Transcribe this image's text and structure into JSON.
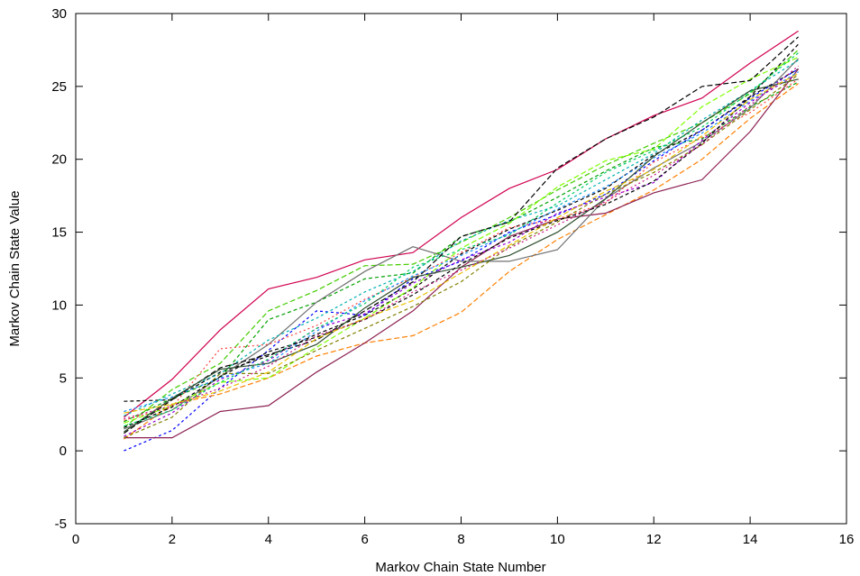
{
  "chart_data": {
    "type": "line",
    "title": "",
    "xlabel": "Markov Chain State Number",
    "ylabel": "Markov Chain State Value",
    "xlim": [
      0,
      16
    ],
    "ylim": [
      -5,
      30
    ],
    "xticks": [
      "0",
      "2",
      "4",
      "6",
      "8",
      "10",
      "12",
      "14",
      "16"
    ],
    "yticks": [
      "-5",
      "0",
      "5",
      "10",
      "15",
      "20",
      "25",
      "30"
    ],
    "grid": false,
    "legend": "none",
    "x": [
      1,
      2,
      3,
      4,
      5,
      6,
      7,
      8,
      9,
      10,
      11,
      12,
      13,
      14,
      15
    ],
    "series": [
      {
        "color": "#d0004f",
        "dash": "",
        "values": [
          2.3,
          4.9,
          8.3,
          11.1,
          11.9,
          13.1,
          13.6,
          16.0,
          18.0,
          19.3,
          21.4,
          23.0,
          24.2,
          26.6,
          28.8
        ]
      },
      {
        "color": "#000000",
        "dash": "4,3",
        "values": [
          3.4,
          3.5,
          5.4,
          6.5,
          8.0,
          9.3,
          11.1,
          13.5,
          15.2,
          16.5,
          18.0,
          20.3,
          22.0,
          24.3,
          26.2
        ]
      },
      {
        "color": "#00a000",
        "dash": "4,3",
        "values": [
          2.0,
          3.6,
          5.0,
          9.0,
          10.2,
          11.8,
          12.2,
          14.7,
          15.7,
          17.4,
          19.2,
          20.8,
          21.4,
          23.6,
          25.3
        ]
      },
      {
        "color": "#44cc00",
        "dash": "6,3",
        "values": [
          1.6,
          4.2,
          6.0,
          9.6,
          11.0,
          12.7,
          12.8,
          14.3,
          16.0,
          17.9,
          19.6,
          21.1,
          22.5,
          24.5,
          27.5
        ]
      },
      {
        "color": "#0000ff",
        "dash": "3,3",
        "values": [
          0.0,
          1.4,
          4.3,
          6.9,
          9.6,
          9.3,
          11.8,
          13.0,
          15.0,
          16.2,
          17.6,
          19.9,
          22.0,
          24.2,
          26.2
        ]
      },
      {
        "color": "#ff7f00",
        "dash": "6,3",
        "values": [
          0.8,
          3.2,
          3.9,
          5.0,
          6.5,
          7.4,
          7.9,
          9.5,
          12.3,
          14.5,
          16.2,
          17.9,
          20.0,
          22.8,
          25.2
        ]
      },
      {
        "color": "#8b2052",
        "dash": "",
        "values": [
          0.9,
          0.9,
          2.7,
          3.1,
          5.4,
          7.4,
          9.6,
          12.6,
          14.7,
          15.9,
          16.3,
          17.7,
          18.6,
          21.9,
          26.2
        ]
      },
      {
        "color": "#707070",
        "dash": "",
        "values": [
          1.5,
          2.8,
          5.1,
          7.3,
          10.2,
          12.3,
          14.0,
          13.0,
          13.0,
          13.8,
          17.3,
          19.4,
          21.2,
          23.5,
          26.9
        ]
      },
      {
        "color": "#00b0b0",
        "dash": "3,3",
        "values": [
          2.4,
          3.9,
          5.3,
          7.6,
          9.1,
          10.9,
          12.3,
          14.4,
          15.8,
          16.8,
          18.6,
          20.4,
          22.7,
          24.7,
          26.8
        ]
      },
      {
        "color": "#9400d3",
        "dash": "3,3",
        "values": [
          1.0,
          2.6,
          4.9,
          6.2,
          8.4,
          9.4,
          11.5,
          13.1,
          14.3,
          16.3,
          17.4,
          18.4,
          21.3,
          23.9,
          25.9
        ]
      },
      {
        "color": "#ff4040",
        "dash": "2,3",
        "values": [
          2.1,
          3.0,
          7.0,
          7.3,
          8.6,
          10.4,
          11.9,
          13.6,
          15.3,
          15.9,
          17.0,
          19.8,
          21.5,
          23.2,
          25.5
        ]
      },
      {
        "color": "#7fff00",
        "dash": "6,3",
        "values": [
          1.9,
          3.1,
          4.7,
          5.0,
          7.1,
          9.1,
          11.2,
          13.9,
          15.6,
          18.1,
          19.9,
          20.7,
          23.6,
          25.5,
          27.0
        ]
      },
      {
        "color": "#000000",
        "dash": "6,3",
        "values": [
          1.2,
          3.5,
          5.7,
          6.6,
          7.6,
          9.6,
          11.6,
          14.7,
          15.7,
          19.4,
          21.4,
          22.9,
          25.0,
          25.4,
          28.4
        ]
      },
      {
        "color": "#1e90ff",
        "dash": "3,3",
        "values": [
          2.7,
          3.7,
          5.0,
          6.0,
          8.2,
          10.3,
          12.0,
          13.4,
          14.9,
          16.6,
          18.1,
          20.1,
          21.8,
          24.0,
          26.0
        ]
      },
      {
        "color": "#2f4f2f",
        "dash": "",
        "values": [
          1.3,
          3.6,
          5.6,
          6.0,
          7.3,
          9.8,
          11.9,
          12.6,
          13.4,
          15.0,
          17.3,
          20.2,
          22.5,
          24.7,
          25.5
        ]
      },
      {
        "color": "#808000",
        "dash": "4,3",
        "values": [
          0.9,
          2.3,
          5.3,
          5.3,
          6.9,
          8.4,
          9.9,
          11.6,
          14.0,
          15.7,
          17.6,
          19.1,
          21.0,
          23.4,
          25.8
        ]
      },
      {
        "color": "#000000",
        "dash": "4,3",
        "values": [
          1.6,
          3.0,
          5.1,
          6.8,
          7.8,
          9.0,
          10.7,
          12.8,
          14.6,
          15.8,
          16.9,
          18.5,
          21.1,
          24.3,
          27.9
        ]
      },
      {
        "color": "#e8c000",
        "dash": "6,3",
        "values": [
          2.6,
          3.2,
          4.1,
          5.4,
          7.7,
          9.1,
          10.3,
          12.2,
          14.1,
          16.0,
          17.8,
          19.3,
          21.6,
          24.1,
          25.9
        ]
      },
      {
        "color": "#00cc66",
        "dash": "3,3",
        "values": [
          1.7,
          2.8,
          4.7,
          6.3,
          8.4,
          10.1,
          12.6,
          13.8,
          14.8,
          17.0,
          19.1,
          20.6,
          22.2,
          24.6,
          27.3
        ]
      },
      {
        "color": "#c71585",
        "dash": "2,3",
        "values": [
          2.2,
          3.1,
          4.3,
          5.8,
          7.9,
          9.0,
          10.9,
          12.4,
          13.9,
          15.5,
          17.1,
          18.9,
          21.0,
          23.7,
          26.4
        ]
      }
    ]
  }
}
